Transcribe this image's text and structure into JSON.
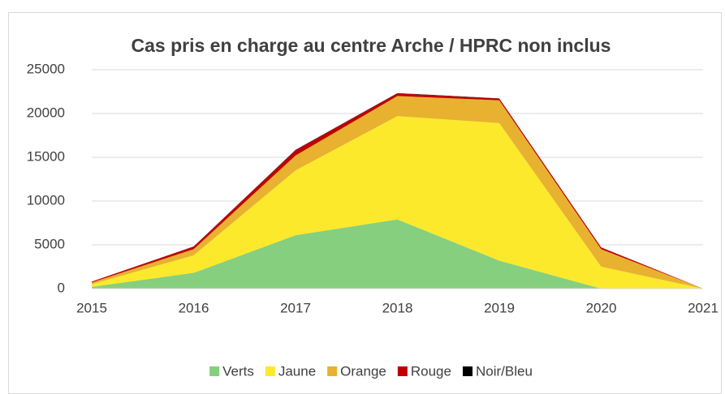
{
  "chart_data": {
    "type": "stacked_area",
    "title": "Cas pris en charge au centre Arche / HPRC non inclus",
    "x": [
      2015,
      2016,
      2017,
      2018,
      2019,
      2020,
      2021
    ],
    "xlim": [
      2015,
      2021
    ],
    "xticks": [
      2015,
      2016,
      2017,
      2018,
      2019,
      2020,
      2021
    ],
    "ylim": [
      0,
      25000
    ],
    "yticks": [
      0,
      5000,
      10000,
      15000,
      20000,
      25000
    ],
    "grid": true,
    "legend": "bottom",
    "series": [
      {
        "name": "Verts",
        "color": "#86cf7f",
        "values": [
          200,
          1800,
          6100,
          7900,
          3200,
          0,
          0
        ]
      },
      {
        "name": "Jaune",
        "color": "#fce92b",
        "values": [
          300,
          2000,
          7400,
          11800,
          15700,
          2500,
          0
        ]
      },
      {
        "name": "Orange",
        "color": "#e8b130",
        "values": [
          200,
          700,
          1700,
          2300,
          2600,
          2000,
          0
        ]
      },
      {
        "name": "Rouge",
        "color": "#c00000",
        "values": [
          100,
          300,
          600,
          300,
          200,
          200,
          0
        ]
      },
      {
        "name": "Noir/Bleu",
        "color": "#000000",
        "values": [
          0,
          10,
          50,
          30,
          20,
          10,
          0
        ]
      }
    ]
  }
}
